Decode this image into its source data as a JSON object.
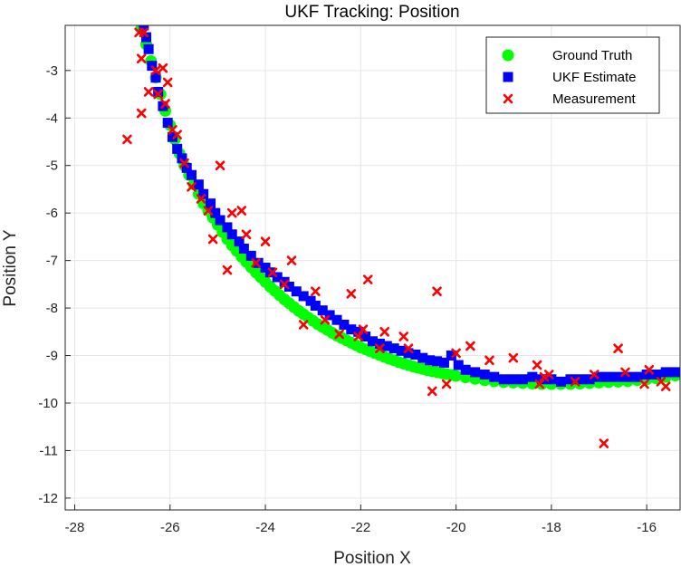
{
  "chart_data": {
    "type": "scatter",
    "title": "UKF Tracking: Position",
    "xlabel": "Position X",
    "ylabel": "Position Y",
    "xlim": [
      -28.2,
      -15.3
    ],
    "ylim": [
      -12.25,
      -2.05
    ],
    "xticks": [
      -28,
      -26,
      -24,
      -22,
      -20,
      -18,
      -16
    ],
    "yticks": [
      -12,
      -11,
      -10,
      -9,
      -8,
      -7,
      -6,
      -5,
      -4,
      -3
    ],
    "grid": true,
    "legend_position": "top-right",
    "series": [
      {
        "name": "Ground Truth",
        "marker": "circle",
        "color": "#00ff00",
        "x": [
          -26.6,
          -26.5,
          -26.4,
          -26.3,
          -26.2,
          -26.1,
          -26.0,
          -25.9,
          -25.8,
          -25.7,
          -25.6,
          -25.5,
          -25.4,
          -25.3,
          -25.2,
          -25.1,
          -25.0,
          -24.9,
          -24.8,
          -24.7,
          -24.6,
          -24.5,
          -24.4,
          -24.3,
          -24.2,
          -24.1,
          -24.0,
          -23.9,
          -23.8,
          -23.7,
          -23.6,
          -23.5,
          -23.4,
          -23.3,
          -23.2,
          -23.1,
          -23.0,
          -22.9,
          -22.8,
          -22.7,
          -22.6,
          -22.5,
          -22.4,
          -22.3,
          -22.2,
          -22.1,
          -22.0,
          -21.9,
          -21.8,
          -21.7,
          -21.6,
          -21.5,
          -21.4,
          -21.3,
          -21.2,
          -21.1,
          -21.0,
          -20.9,
          -20.8,
          -20.7,
          -20.6,
          -20.5,
          -20.4,
          -20.3,
          -20.2,
          -20.1,
          -20.0,
          -19.8,
          -19.6,
          -19.4,
          -19.2,
          -19.0,
          -18.8,
          -18.6,
          -18.4,
          -18.2,
          -18.0,
          -17.8,
          -17.6,
          -17.4,
          -17.2,
          -17.0,
          -16.8,
          -16.6,
          -16.4,
          -16.2,
          -16.0,
          -15.8,
          -15.6,
          -15.4
        ],
        "y": [
          -2.1,
          -2.45,
          -2.8,
          -3.15,
          -3.5,
          -3.85,
          -4.15,
          -4.45,
          -4.75,
          -5.0,
          -5.2,
          -5.4,
          -5.6,
          -5.8,
          -5.95,
          -6.1,
          -6.25,
          -6.4,
          -6.55,
          -6.68,
          -6.8,
          -6.92,
          -7.03,
          -7.14,
          -7.25,
          -7.35,
          -7.45,
          -7.55,
          -7.64,
          -7.73,
          -7.82,
          -7.9,
          -7.98,
          -8.06,
          -8.13,
          -8.2,
          -8.27,
          -8.34,
          -8.4,
          -8.46,
          -8.52,
          -8.58,
          -8.63,
          -8.68,
          -8.73,
          -8.78,
          -8.83,
          -8.87,
          -8.91,
          -8.95,
          -8.99,
          -9.03,
          -9.07,
          -9.1,
          -9.14,
          -9.17,
          -9.2,
          -9.23,
          -9.26,
          -9.28,
          -9.31,
          -9.33,
          -9.35,
          -9.37,
          -9.39,
          -9.41,
          -9.43,
          -9.46,
          -9.49,
          -9.52,
          -9.54,
          -9.56,
          -9.57,
          -9.58,
          -9.59,
          -9.6,
          -9.6,
          -9.6,
          -9.6,
          -9.59,
          -9.58,
          -9.57,
          -9.56,
          -9.55,
          -9.54,
          -9.52,
          -9.5,
          -9.48,
          -9.45,
          -9.42
        ]
      },
      {
        "name": "UKF Estimate",
        "marker": "square",
        "color": "#0000ff",
        "x": [
          -26.55,
          -26.5,
          -26.45,
          -26.38,
          -26.3,
          -26.25,
          -26.15,
          -26.05,
          -25.95,
          -25.85,
          -25.75,
          -25.65,
          -25.55,
          -25.4,
          -25.3,
          -25.15,
          -25.05,
          -24.95,
          -24.8,
          -24.7,
          -24.55,
          -24.45,
          -24.3,
          -24.15,
          -24.0,
          -23.9,
          -23.75,
          -23.6,
          -23.5,
          -23.35,
          -23.2,
          -23.05,
          -22.95,
          -22.8,
          -22.65,
          -22.5,
          -22.35,
          -22.2,
          -22.05,
          -21.9,
          -21.75,
          -21.6,
          -21.45,
          -21.3,
          -21.15,
          -21.0,
          -20.85,
          -20.7,
          -20.55,
          -20.4,
          -20.25,
          -20.1,
          -19.95,
          -19.8,
          -19.6,
          -19.4,
          -19.2,
          -19.0,
          -18.8,
          -18.6,
          -18.4,
          -18.2,
          -18.0,
          -17.8,
          -17.6,
          -17.4,
          -17.2,
          -17.0,
          -16.8,
          -16.6,
          -16.4,
          -16.2,
          -16.0,
          -15.8,
          -15.6,
          -15.4
        ],
        "y": [
          -2.05,
          -2.3,
          -2.55,
          -2.9,
          -3.15,
          -3.45,
          -3.75,
          -4.1,
          -4.4,
          -4.65,
          -4.85,
          -5.05,
          -5.2,
          -5.4,
          -5.6,
          -5.8,
          -6.0,
          -6.15,
          -6.3,
          -6.45,
          -6.6,
          -6.75,
          -6.9,
          -7.05,
          -7.15,
          -7.25,
          -7.35,
          -7.45,
          -7.55,
          -7.65,
          -7.75,
          -7.85,
          -7.95,
          -8.05,
          -8.15,
          -8.25,
          -8.35,
          -8.45,
          -8.5,
          -8.6,
          -8.7,
          -8.75,
          -8.8,
          -8.85,
          -8.9,
          -8.95,
          -8.98,
          -9.05,
          -9.1,
          -9.12,
          -9.15,
          -9.0,
          -9.2,
          -9.3,
          -9.35,
          -9.4,
          -9.45,
          -9.5,
          -9.5,
          -9.5,
          -9.45,
          -9.5,
          -9.5,
          -9.55,
          -9.5,
          -9.5,
          -9.5,
          -9.45,
          -9.45,
          -9.45,
          -9.45,
          -9.45,
          -9.4,
          -9.4,
          -9.35,
          -9.35
        ]
      },
      {
        "name": "Measurement",
        "marker": "x",
        "color": "#ff0000",
        "x": [
          -26.9,
          -26.65,
          -26.6,
          -26.55,
          -26.6,
          -26.45,
          -26.3,
          -26.25,
          -26.15,
          -26.05,
          -26.1,
          -25.95,
          -25.85,
          -25.7,
          -25.55,
          -25.35,
          -25.2,
          -25.1,
          -24.95,
          -24.8,
          -24.7,
          -24.5,
          -24.4,
          -24.2,
          -24.0,
          -23.85,
          -23.6,
          -23.45,
          -23.2,
          -22.95,
          -22.75,
          -22.45,
          -22.2,
          -22.05,
          -21.95,
          -21.85,
          -21.6,
          -21.5,
          -21.1,
          -21.0,
          -20.5,
          -20.4,
          -20.2,
          -20.0,
          -19.7,
          -19.3,
          -18.8,
          -18.3,
          -18.25,
          -18.15,
          -18.05,
          -17.5,
          -17.1,
          -16.9,
          -16.6,
          -16.45,
          -16.05,
          -15.95,
          -15.7,
          -15.6
        ],
        "y": [
          -4.45,
          -2.2,
          -2.75,
          -2.2,
          -3.9,
          -3.45,
          -3.0,
          -3.5,
          -2.95,
          -3.25,
          -3.7,
          -4.25,
          -4.35,
          -4.95,
          -5.45,
          -5.7,
          -5.95,
          -6.55,
          -5.0,
          -7.2,
          -6.0,
          -5.95,
          -6.45,
          -7.05,
          -6.6,
          -7.25,
          -7.5,
          -7.0,
          -8.35,
          -7.65,
          -8.25,
          -8.55,
          -7.7,
          -8.6,
          -8.45,
          -7.4,
          -8.85,
          -8.5,
          -8.6,
          -8.85,
          -9.75,
          -7.65,
          -9.6,
          -8.95,
          -8.8,
          -9.1,
          -9.05,
          -9.2,
          -9.6,
          -9.45,
          -9.4,
          -9.55,
          -9.4,
          -10.85,
          -8.85,
          -9.35,
          -9.6,
          -9.3,
          -9.55,
          -9.65
        ]
      }
    ]
  }
}
